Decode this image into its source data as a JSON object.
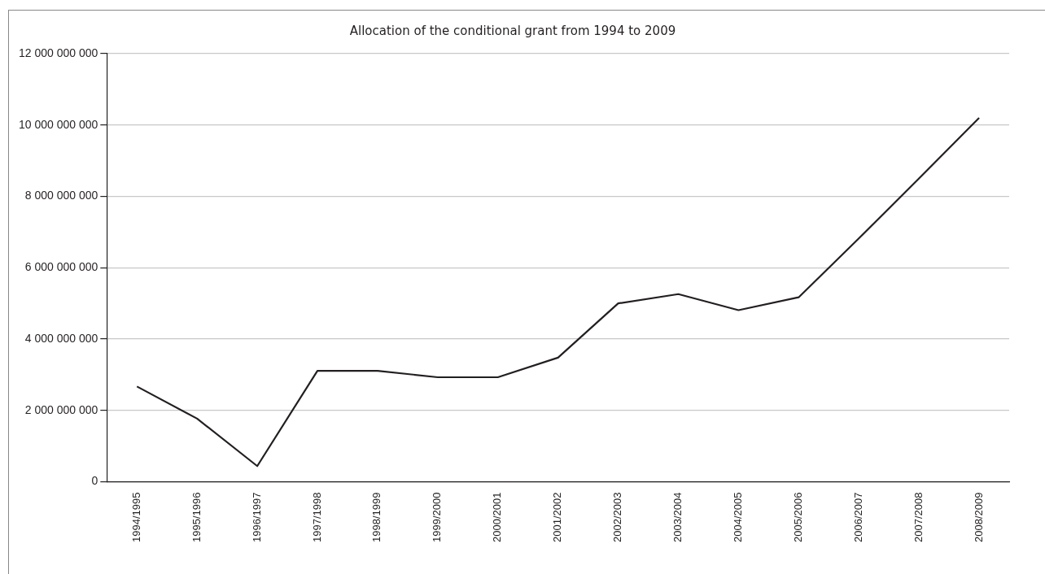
{
  "chart_data": {
    "type": "line",
    "title": "Allocation of the conditional grant from 1994 to 2009",
    "categories": [
      "1994/1995",
      "1995/1996",
      "1996/1997",
      "1997/1998",
      "1998/1999",
      "1999/2000",
      "2000/2001",
      "2001/2002",
      "2002/2003",
      "2003/2004",
      "2004/2005",
      "2005/2006",
      "2006/2007",
      "2007/2008",
      "2008/2009"
    ],
    "series": [
      {
        "color": "#231f20",
        "values": [
          2670000000,
          1770000000,
          440000000,
          3110000000,
          3110000000,
          2930000000,
          2930000000,
          3480000000,
          5000000000,
          5260000000,
          4810000000,
          5170000000,
          6820000000,
          8500000000,
          10200000000
        ]
      }
    ],
    "ylim": [
      0,
      12000000000
    ],
    "yticks": [
      {
        "value": 0,
        "label": "0"
      },
      {
        "value": 2000000000,
        "label": "2 000 000 000"
      },
      {
        "value": 4000000000,
        "label": "4 000 000 000"
      },
      {
        "value": 6000000000,
        "label": "6 000 000 000"
      },
      {
        "value": 8000000000,
        "label": "8 000 000 000"
      },
      {
        "value": 10000000000,
        "label": "10 000 000 000"
      },
      {
        "value": 12000000000,
        "label": "12 000 000 000"
      }
    ],
    "grid": "y",
    "legend": false,
    "marker": "none",
    "line_style": "solid"
  }
}
